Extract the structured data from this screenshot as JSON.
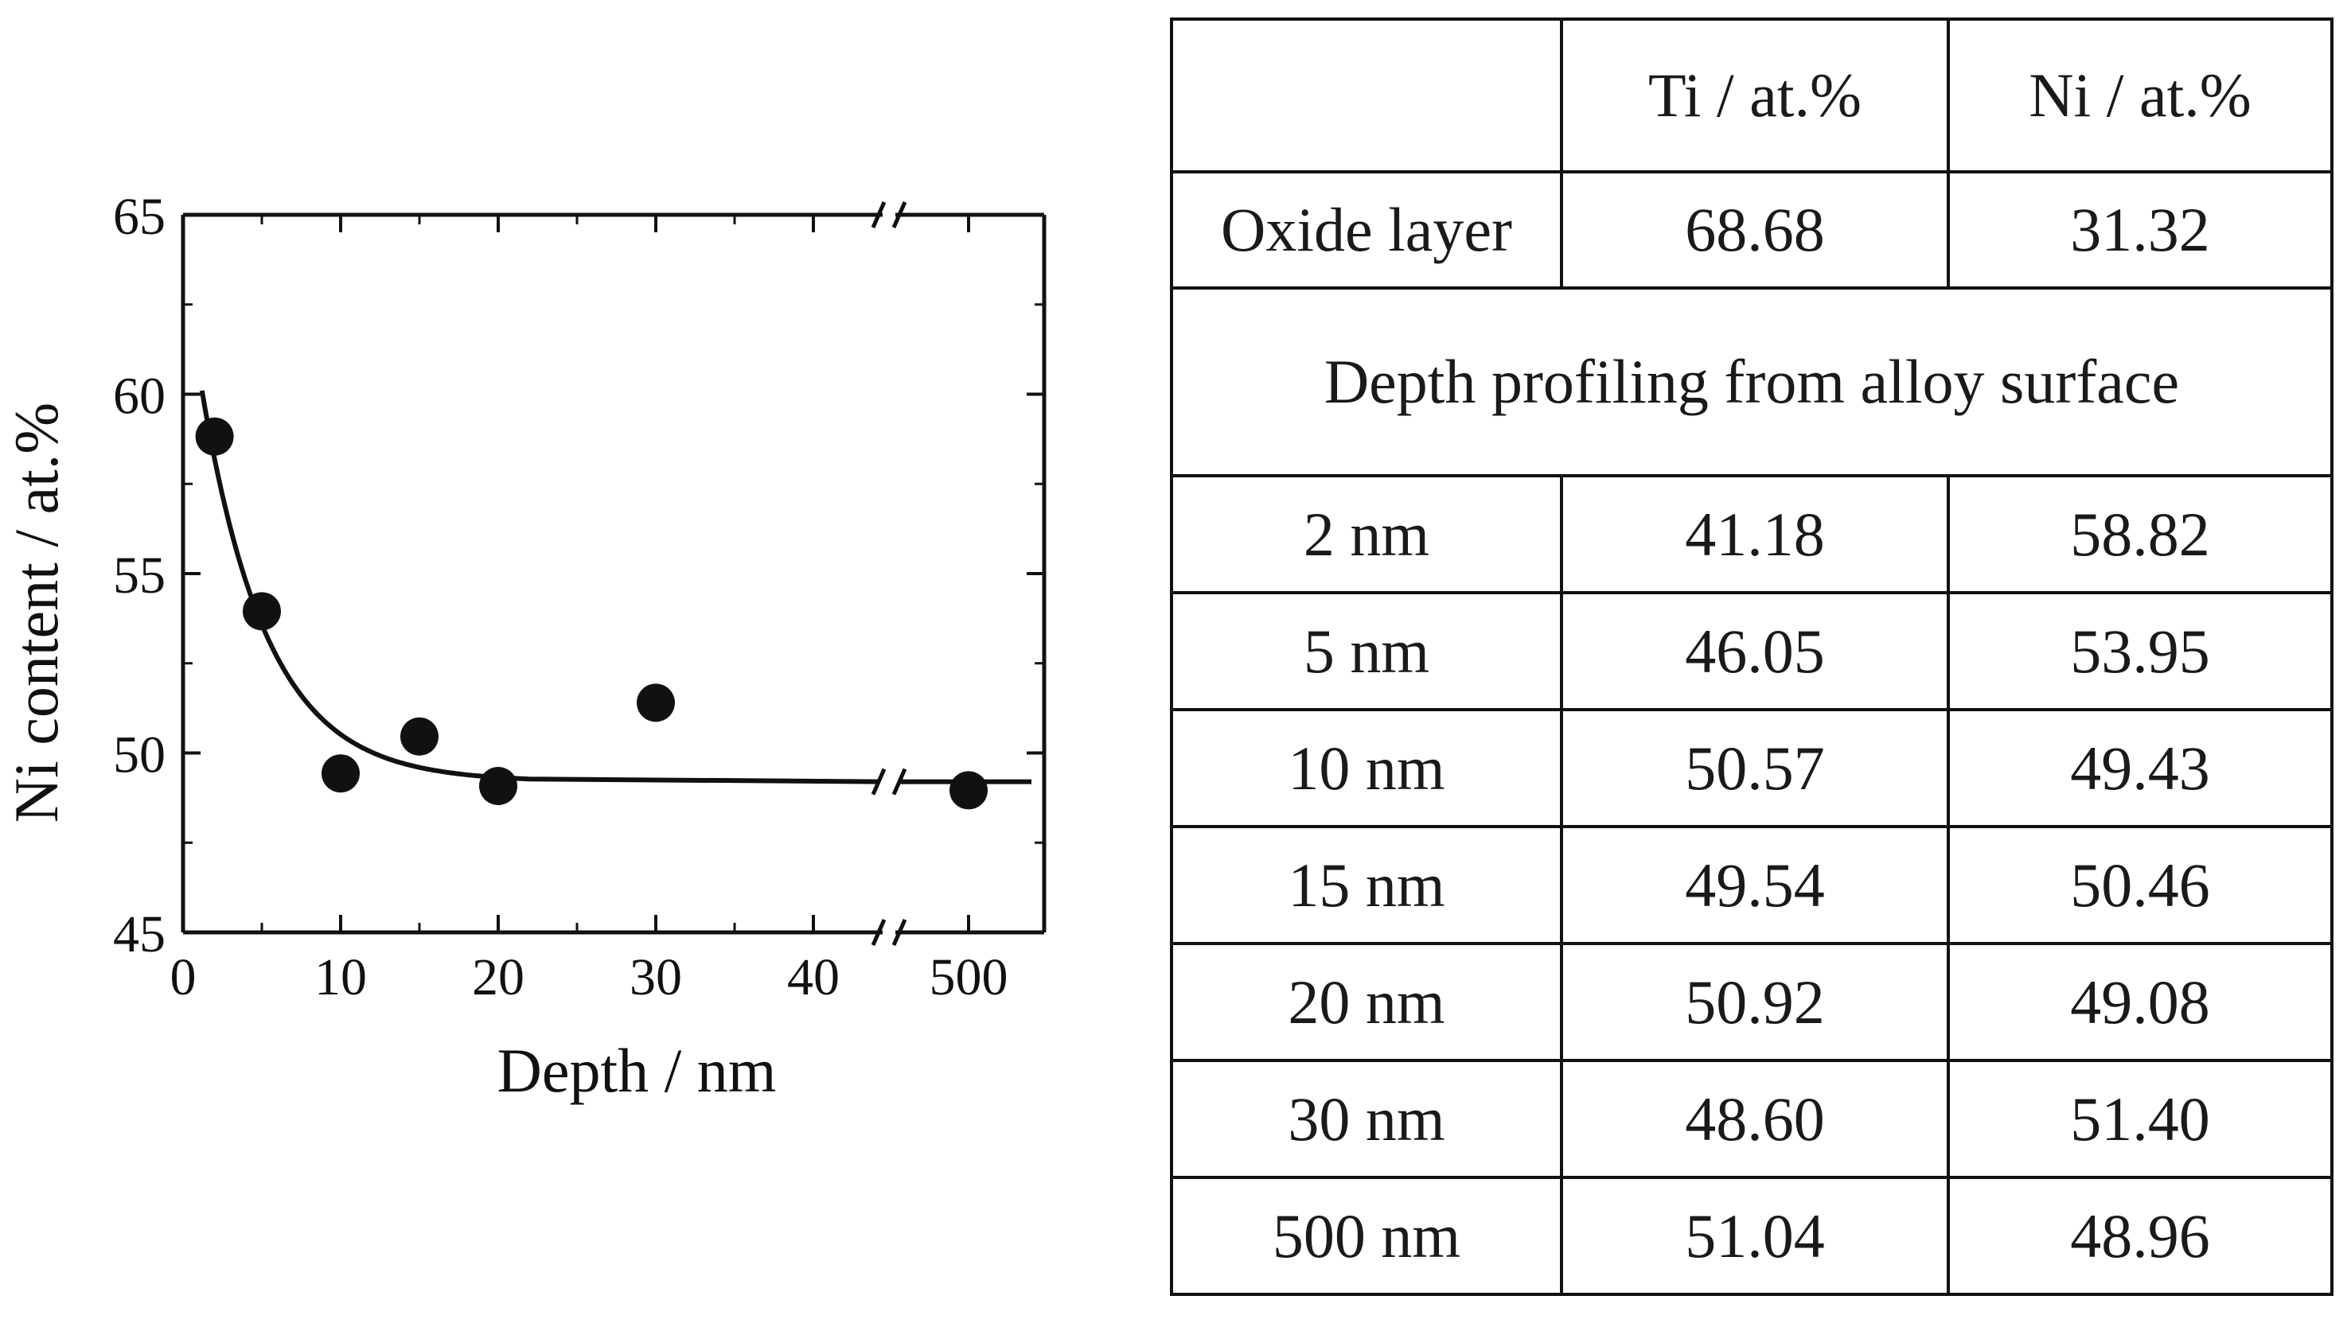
{
  "chart_data": {
    "type": "scatter",
    "xlabel": "Depth / nm",
    "ylabel": "Ni content / at.%",
    "ylim": [
      45,
      65
    ],
    "y_ticks": [
      "45",
      "50",
      "55",
      "60",
      "65"
    ],
    "x_ticks": [
      "0",
      "10",
      "20",
      "30",
      "40",
      "500"
    ],
    "axis_break": "between 40 and 500",
    "grid": false,
    "points": [
      {
        "x": 2,
        "y": 58.82
      },
      {
        "x": 5,
        "y": 53.95
      },
      {
        "x": 10,
        "y": 49.43
      },
      {
        "x": 15,
        "y": 50.46
      },
      {
        "x": 20,
        "y": 49.08
      },
      {
        "x": 30,
        "y": 51.4
      },
      {
        "x": 500,
        "y": 48.96
      }
    ],
    "fit_curve": {
      "type": "exponential decay",
      "plateau": 49.2,
      "start": [
        1.2,
        60.1
      ]
    }
  },
  "table": {
    "headers": [
      "",
      "Ti / at.%",
      "Ni / at.%"
    ],
    "oxide_row": {
      "label": "Oxide layer",
      "ti": "68.68",
      "ni": "31.32"
    },
    "section_title": "Depth profiling from alloy surface",
    "rows": [
      {
        "label": "2 nm",
        "ti": "41.18",
        "ni": "58.82"
      },
      {
        "label": "5 nm",
        "ti": "46.05",
        "ni": "53.95"
      },
      {
        "label": "10 nm",
        "ti": "50.57",
        "ni": "49.43"
      },
      {
        "label": "15 nm",
        "ti": "49.54",
        "ni": "50.46"
      },
      {
        "label": "20 nm",
        "ti": "50.92",
        "ni": "49.08"
      },
      {
        "label": "30 nm",
        "ti": "48.60",
        "ni": "51.40"
      },
      {
        "label": "500 nm",
        "ti": "51.04",
        "ni": "48.96"
      }
    ]
  }
}
